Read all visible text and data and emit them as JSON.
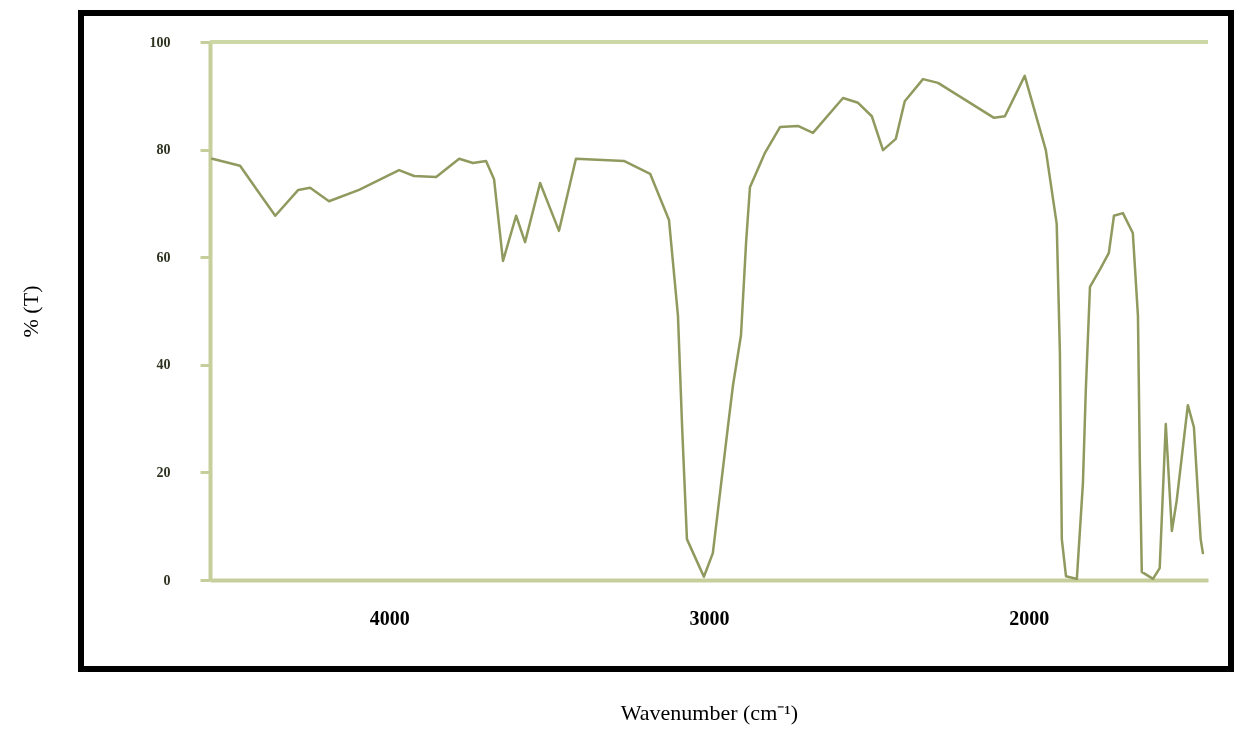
{
  "chart_data": {
    "type": "line",
    "xlabel": "Wavenumber (cm⁻¹)",
    "ylabel": "% (T)",
    "x": [
      4553,
      4466,
      4419,
      4356,
      4284,
      4247,
      4188,
      4094,
      3969,
      3922,
      3853,
      3781,
      3738,
      3697,
      3672,
      3644,
      3603,
      3575,
      3528,
      3469,
      3416,
      3266,
      3184,
      3125,
      3097,
      3084,
      3069,
      3044,
      3016,
      2988,
      2941,
      2925,
      2900,
      2884,
      2872,
      2825,
      2778,
      2722,
      2675,
      2581,
      2534,
      2491,
      2456,
      2416,
      2388,
      2331,
      2284,
      2109,
      2075,
      2013,
      1947,
      1913,
      1903,
      1897,
      1884,
      1850,
      1831,
      1822,
      1809,
      1775,
      1750,
      1734,
      1706,
      1675,
      1659,
      1653,
      1647,
      1612,
      1591,
      1572,
      1553,
      1538,
      1503,
      1484,
      1463,
      1456
    ],
    "values": [
      78.3,
      77,
      73,
      67.7,
      72.5,
      72.9,
      70.4,
      72.5,
      76.2,
      75.1,
      74.9,
      78.3,
      77.5,
      77.9,
      74.5,
      59.3,
      67.7,
      62.8,
      73.8,
      64.9,
      78.3,
      77.9,
      75.5,
      66.9,
      49.1,
      28.4,
      7.6,
      4.3,
      0.6,
      5,
      28.4,
      36.2,
      45.5,
      62.8,
      73,
      79.4,
      84.2,
      84.4,
      83.1,
      89.6,
      88.7,
      86.2,
      79.9,
      82,
      89,
      93.1,
      92.4,
      85.9,
      86.2,
      93.7,
      79.9,
      66.2,
      42.2,
      7.6,
      0.7,
      0.2,
      18,
      35.3,
      54.5,
      58,
      60.8,
      67.7,
      68.2,
      64.5,
      49.1,
      21.6,
      1.5,
      0.2,
      2.2,
      29,
      9.1,
      14.7,
      32.5,
      28.4,
      7.6,
      5
    ],
    "color": "#8f9a5e",
    "xlim": [
      4560,
      1440
    ],
    "xticks": [
      4000,
      3000,
      2000
    ],
    "ylim": [
      0,
      100
    ],
    "yticks": [
      0,
      20,
      40,
      60,
      80,
      100
    ],
    "ref_lines": [
      {
        "axis": "y",
        "value": 100,
        "color": "#cdd6a5"
      }
    ]
  }
}
